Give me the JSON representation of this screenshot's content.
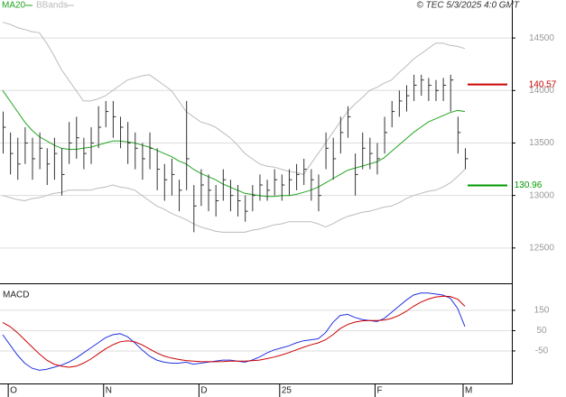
{
  "chart_data": [
    {
      "type": "ohlc",
      "credit": "© TEC 5/3/2025 4:0 GMT",
      "color": "#333333",
      "high": [
        13800,
        13600,
        13550,
        13650,
        13550,
        13600,
        13450,
        13550,
        13450,
        13700,
        13750,
        13550,
        13650,
        13850,
        13900,
        13900,
        13750,
        13700,
        13600,
        13500,
        13600,
        13450,
        13300,
        13350,
        13150,
        13900,
        13100,
        13250,
        13200,
        13100,
        13250,
        13150,
        13100,
        13000,
        13100,
        13200,
        13150,
        13250,
        13200,
        13250,
        13300,
        13350,
        13250,
        13200,
        13600,
        13550,
        13750,
        13850,
        13400,
        13600,
        13550,
        13500,
        13750,
        13900,
        14000,
        14050,
        14150,
        14150,
        14120,
        14100,
        14120,
        14150,
        13750,
        13450
      ],
      "low": [
        13400,
        13200,
        13150,
        13300,
        13150,
        13250,
        13100,
        13150,
        13000,
        13300,
        13350,
        13250,
        13300,
        13450,
        13650,
        13550,
        13450,
        13300,
        13250,
        13150,
        13250,
        13050,
        12950,
        13000,
        12850,
        13050,
        12650,
        12900,
        12850,
        12800,
        12950,
        12850,
        12800,
        12750,
        12850,
        12950,
        12950,
        13000,
        12950,
        13000,
        13050,
        13100,
        12950,
        12850,
        13250,
        13150,
        13400,
        13550,
        13000,
        13250,
        13250,
        13200,
        13400,
        13650,
        13750,
        13800,
        13900,
        13950,
        13900,
        13900,
        13900,
        13800,
        13400,
        13250
      ],
      "close": [
        13650,
        13400,
        13300,
        13500,
        13350,
        13450,
        13300,
        13400,
        13200,
        13500,
        13550,
        13400,
        13500,
        13650,
        13800,
        13750,
        13650,
        13500,
        13450,
        13350,
        13450,
        13250,
        13150,
        13200,
        13050,
        13350,
        12900,
        13100,
        13050,
        12950,
        13150,
        13000,
        12950,
        12850,
        13000,
        13100,
        13050,
        13150,
        13100,
        13150,
        13200,
        13250,
        13150,
        13000,
        13450,
        13350,
        13600,
        13750,
        13200,
        13450,
        13400,
        13350,
        13600,
        13800,
        13900,
        13950,
        14050,
        14100,
        14050,
        14000,
        14050,
        14100,
        13600,
        13350
      ],
      "series": [
        {
          "name": "MA20",
          "color": "#1fa51f",
          "values": [
            14000,
            13900,
            13800,
            13700,
            13620,
            13560,
            13520,
            13480,
            13450,
            13440,
            13440,
            13450,
            13460,
            13480,
            13500,
            13520,
            13520,
            13510,
            13500,
            13480,
            13460,
            13430,
            13400,
            13370,
            13330,
            13300,
            13250,
            13210,
            13180,
            13150,
            13110,
            13080,
            13050,
            13020,
            13010,
            13000,
            12990,
            12990,
            13000,
            13000,
            13010,
            13030,
            13050,
            13080,
            13120,
            13160,
            13200,
            13240,
            13260,
            13280,
            13300,
            13320,
            13360,
            13420,
            13480,
            13540,
            13600,
            13650,
            13700,
            13730,
            13760,
            13790,
            13810,
            13800
          ]
        },
        {
          "name": "BBands",
          "color": "#bbbbbb",
          "upper": [
            14650,
            14630,
            14600,
            14580,
            14560,
            14550,
            14450,
            14330,
            14200,
            14100,
            14000,
            13900,
            13900,
            13920,
            13950,
            14000,
            14050,
            14100,
            14120,
            14140,
            14150,
            14100,
            14050,
            14000,
            13900,
            13800,
            13750,
            13700,
            13680,
            13650,
            13600,
            13550,
            13480,
            13400,
            13350,
            13300,
            13280,
            13270,
            13250,
            13230,
            13220,
            13200,
            13300,
            13400,
            13500,
            13600,
            13700,
            13800,
            13870,
            13930,
            14000,
            14030,
            14070,
            14100,
            14170,
            14230,
            14300,
            14350,
            14400,
            14450,
            14450,
            14430,
            14420,
            14400
          ],
          "lower": [
            13000,
            12980,
            12960,
            12950,
            12970,
            12980,
            13000,
            13020,
            13030,
            13050,
            13050,
            13050,
            13050,
            13070,
            13080,
            13100,
            13080,
            13070,
            13050,
            13000,
            12950,
            12900,
            12870,
            12830,
            12800,
            12770,
            12730,
            12700,
            12680,
            12660,
            12650,
            12650,
            12650,
            12650,
            12670,
            12680,
            12700,
            12720,
            12730,
            12750,
            12750,
            12750,
            12750,
            12730,
            12700,
            12730,
            12770,
            12800,
            12820,
            12840,
            12850,
            12870,
            12890,
            12900,
            12930,
            12970,
            13000,
            13020,
            13040,
            13050,
            13080,
            13120,
            13180,
            13250
          ]
        }
      ],
      "markers": [
        {
          "value": 14057,
          "label": "140.57",
          "color": "#cc0000"
        },
        {
          "value": 13096,
          "label": "130.96",
          "color": "#009900"
        }
      ],
      "ylim": [
        12172,
        14862
      ],
      "yticks": [
        12500,
        13000,
        13500,
        14000,
        14500
      ],
      "grid": true
    },
    {
      "type": "line",
      "title": "MACD",
      "categories": [
        null,
        "O",
        null,
        null,
        null,
        null,
        null,
        null,
        null,
        null,
        null,
        null,
        null,
        null,
        "N",
        null,
        null,
        null,
        null,
        null,
        null,
        null,
        null,
        null,
        null,
        null,
        null,
        "D",
        null,
        null,
        null,
        null,
        null,
        null,
        null,
        null,
        null,
        null,
        "25",
        null,
        null,
        null,
        null,
        null,
        null,
        null,
        null,
        null,
        null,
        null,
        null,
        "F",
        null,
        null,
        null,
        null,
        null,
        null,
        null,
        null,
        null,
        null,
        null,
        "M"
      ],
      "series": [
        {
          "color": "#2233dd",
          "values": [
            30,
            -20,
            -70,
            -110,
            -135,
            -145,
            -140,
            -130,
            -120,
            -105,
            -85,
            -60,
            -35,
            -10,
            15,
            30,
            35,
            20,
            -10,
            -45,
            -75,
            -95,
            -105,
            -110,
            -110,
            -105,
            -115,
            -110,
            -105,
            -100,
            -95,
            -95,
            -100,
            -105,
            -95,
            -80,
            -60,
            -45,
            -35,
            -25,
            -10,
            0,
            5,
            10,
            40,
            90,
            125,
            130,
            115,
            105,
            100,
            95,
            110,
            140,
            170,
            200,
            225,
            235,
            235,
            230,
            225,
            210,
            160,
            70
          ]
        },
        {
          "color": "#cc0000",
          "values": [
            90,
            70,
            40,
            5,
            -30,
            -65,
            -95,
            -115,
            -125,
            -130,
            -125,
            -110,
            -90,
            -65,
            -40,
            -20,
            -5,
            0,
            -5,
            -20,
            -40,
            -60,
            -75,
            -85,
            -92,
            -97,
            -100,
            -102,
            -103,
            -103,
            -102,
            -100,
            -100,
            -100,
            -98,
            -95,
            -88,
            -80,
            -70,
            -58,
            -45,
            -32,
            -20,
            -10,
            5,
            30,
            60,
            80,
            92,
            98,
            100,
            100,
            102,
            110,
            125,
            145,
            170,
            190,
            205,
            215,
            220,
            218,
            205,
            170
          ]
        }
      ],
      "ylim": [
        -210,
        274
      ],
      "yticks": [
        150,
        50,
        -50
      ],
      "grid": true
    }
  ]
}
